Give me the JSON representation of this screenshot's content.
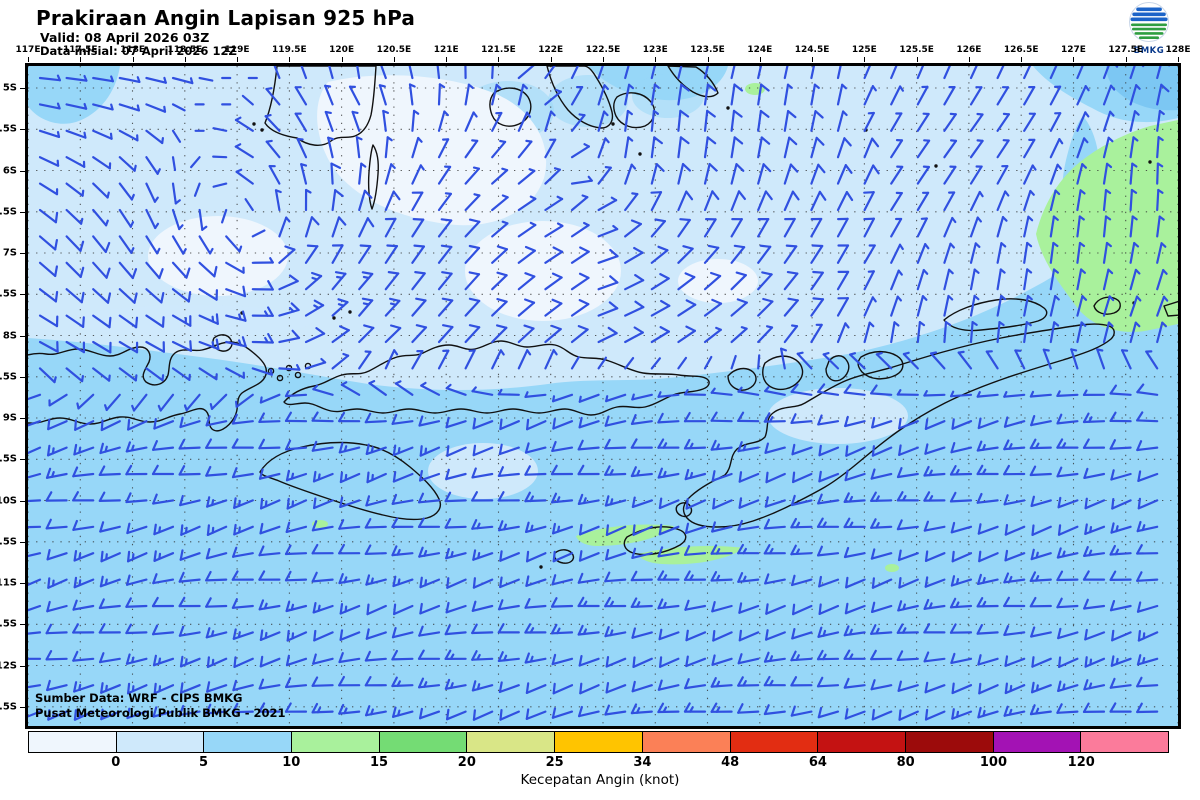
{
  "header": {
    "title": "Prakiraan Angin Lapisan 925 hPa",
    "valid_line": "Valid: 08 April 2026 03Z",
    "init_line": "Data inisial: 07 April 2026 12Z"
  },
  "logo": {
    "label": "BMKG"
  },
  "map": {
    "credit_line1": "Sumber Data: WRF - CIPS BMKG",
    "credit_line2": "Pusat Meteorologi Publik BMKG -  2021",
    "lon_ticks": [
      "117E",
      "117.5E",
      "118E",
      "118.5E",
      "119E",
      "119.5E",
      "120E",
      "120.5E",
      "121E",
      "121.5E",
      "122E",
      "122.5E",
      "123E",
      "123.5E",
      "124E",
      "124.5E",
      "125E",
      "125.5E",
      "126E",
      "126.5E",
      "127E",
      "127.5E",
      "128E"
    ],
    "lat_ticks": [
      "5S",
      "5.5S",
      "6S",
      "6.5S",
      "7S",
      "7.5S",
      "8S",
      "8.5S",
      "9S",
      "9.5S",
      "10S",
      "10.5S",
      "11S",
      "11.5S",
      "12S",
      "12.5S"
    ],
    "lon_range": [
      117,
      128
    ],
    "lat_range": [
      5,
      12.5
    ],
    "wind_field": {
      "north_flow": {
        "u_west": -7.5,
        "u_east": -1.2,
        "v_west": 1.0,
        "v_east": 6.8
      },
      "south_flow": {
        "from_dir_deg": 258,
        "dir_wave_deg": 12,
        "speed_kt": 11.5,
        "speed_wave_kt": 2.0
      },
      "shear_blend_lat": [
        7.85,
        9.25
      ],
      "vortices": [
        {
          "lon": 119.3,
          "lat": 7.2,
          "strength_kt": 8,
          "radius_deg": 1.0
        },
        {
          "lon": 122.5,
          "lat": 6.35,
          "strength_kt": 4,
          "radius_deg": 0.85
        }
      ]
    }
  },
  "legend": {
    "caption": "Kecepatan Angin (knot)",
    "boundary_labels": [
      "0",
      "5",
      "10",
      "15",
      "20",
      "25",
      "34",
      "48",
      "64",
      "80",
      "100",
      "120"
    ],
    "colors": [
      "#eff6fd",
      "#cfe9fb",
      "#97d7f8",
      "#a9f19c",
      "#74dc74",
      "#d9e687",
      "#ffc400",
      "#fb8057",
      "#e22d12",
      "#c41212",
      "#9c0b0b",
      "#a312b4",
      "#fb7b9b"
    ]
  },
  "colors": {
    "barb": "#3050e0",
    "coastline": "#111111",
    "accent_deep_blue": "#7cc7f3",
    "grid_dots": "#333333"
  }
}
